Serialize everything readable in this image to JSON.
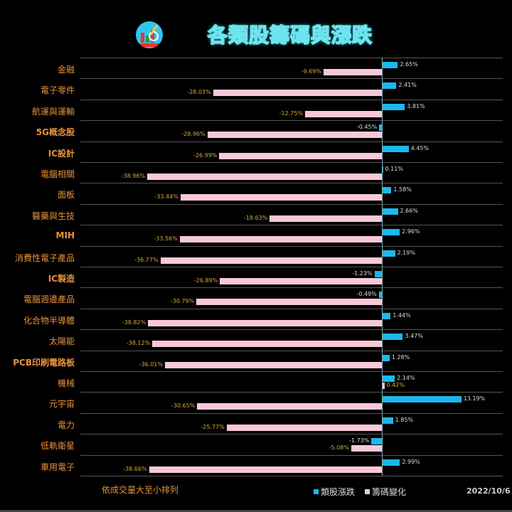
{
  "header": {
    "title": "各類股籌碼與漲跌",
    "logo_alt": "logo"
  },
  "footer": {
    "note": "依成交量大至小排列",
    "date": "2022/10/6"
  },
  "legend": [
    {
      "label": "類股漲跌",
      "color": "#1ab8ee"
    },
    {
      "label": "籌碼變化",
      "color": "#f8c8d8"
    }
  ],
  "chart_data": {
    "type": "bar",
    "orientation": "horizontal",
    "title": "各類股籌碼與漲跌",
    "note": "依成交量大至小排列",
    "date": "2022/10/6",
    "categories": [
      "金融",
      "電子零件",
      "航運與運輸",
      "5G概念股",
      "IC設計",
      "電腦相關",
      "面板",
      "醫藥與生技",
      "MIH",
      "消費性電子產品",
      "IC製造",
      "電腦週邊產品",
      "化合物半導體",
      "太陽能",
      "PCB印刷電路板",
      "機械",
      "元宇宙",
      "電力",
      "低軌衛星",
      "車用電子"
    ],
    "series": [
      {
        "name": "類股漲跌",
        "color": "#1ab8ee",
        "unit": "%",
        "values": [
          2.65,
          2.41,
          3.81,
          -0.45,
          4.45,
          0.11,
          1.58,
          2.66,
          2.96,
          2.19,
          -1.23,
          -0.49,
          1.44,
          3.47,
          1.28,
          2.14,
          13.19,
          1.85,
          -1.73,
          2.99
        ]
      },
      {
        "name": "籌碼變化",
        "color": "#f8c8d8",
        "unit": "%",
        "values": [
          -9.69,
          -28.03,
          -12.75,
          -28.96,
          -26.99,
          -38.96,
          -33.44,
          -18.63,
          -33.56,
          -36.77,
          -26.89,
          -30.79,
          -38.82,
          -38.12,
          -36.01,
          0.42,
          -30.65,
          -25.77,
          -5.08,
          -38.66
        ]
      }
    ],
    "labels": {
      "price": [
        "2.65%",
        "2.41%",
        "3.81%",
        "-0.45%",
        "4.45%",
        "0.11%",
        "1.58%",
        "2.66%",
        "2.96%",
        "2.19%",
        "-1.23%",
        "-0.49%",
        "1.44%",
        "3.47%",
        "1.28%",
        "2.14%",
        "13.19%",
        "1.85%",
        "-1.73%",
        "2.99%"
      ],
      "chip": [
        "-9.69%",
        "-28.03%",
        "-12.75%",
        "-28.96%",
        "-26.99%",
        "-38.96%",
        "-33.44%",
        "-18.63%",
        "-33.56%",
        "-36.77%",
        "-26.89%",
        "-30.79%",
        "-38.82%",
        "-38.12%",
        "-36.01%",
        "0.42%",
        "-30.65%",
        "-25.77%",
        "-5.08%",
        "-38.66%"
      ]
    },
    "bold_categories": [
      "5G概念股",
      "IC設計",
      "MIH",
      "IC製造",
      "PCB印刷電路板"
    ],
    "grid": true,
    "legend_position": "bottom"
  }
}
